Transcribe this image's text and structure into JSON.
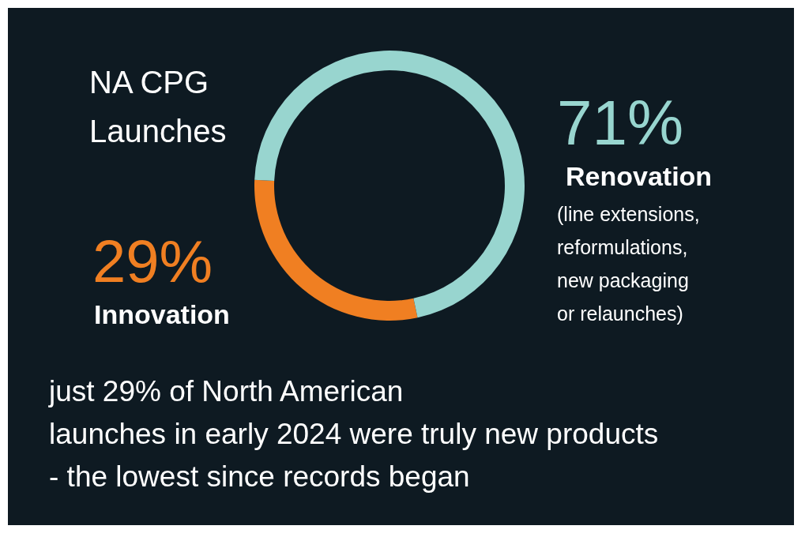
{
  "chart_data": {
    "type": "donut",
    "title": "NA CPG Launches",
    "categories": [
      "Innovation",
      "Renovation"
    ],
    "values": [
      29,
      71
    ],
    "colors": [
      "#f07f22",
      "#98d5cf"
    ],
    "value_labels": [
      "29%",
      "71%"
    ],
    "annotations": [
      "(line extensions, reformulations, new packaging or relaunches)",
      "just 29% of North American launches in early 2024 were truly new products - the lowest since records began"
    ]
  }
}
